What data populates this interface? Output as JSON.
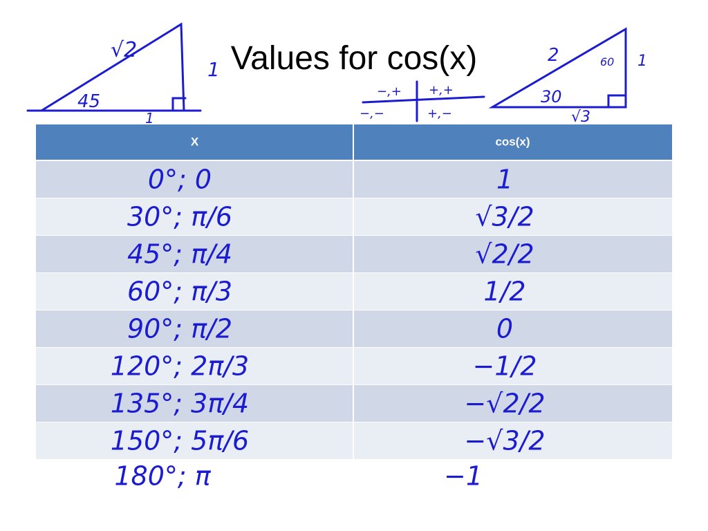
{
  "title": "Values for cos(x)",
  "table": {
    "header": [
      "X",
      "cos(x)"
    ],
    "rows": [
      [
        "0°; 0",
        "1"
      ],
      [
        "30°; π/6",
        "√3/2"
      ],
      [
        "45°; π/4",
        "√2/2"
      ],
      [
        "60°; π/3",
        "1/2"
      ],
      [
        "90°; π/2",
        "0"
      ],
      [
        "120°; 2π/3",
        "−1/2"
      ],
      [
        "135°; 3π/4",
        "−√2/2"
      ],
      [
        "150°; 5π/6",
        "−√3/2"
      ]
    ]
  },
  "after_table": [
    "180°; π",
    "−1"
  ],
  "left_triangle": {
    "hypotenuse": "√2",
    "angle": "45",
    "leg_side": "1",
    "leg_base": "1"
  },
  "right_triangle": {
    "hypotenuse": "2",
    "top_angle": "60",
    "leg_side": "1",
    "angle": "30",
    "base": "√3"
  },
  "quadrant_signs": [
    "−,+",
    "+,+",
    "−,−",
    "+,−"
  ]
}
